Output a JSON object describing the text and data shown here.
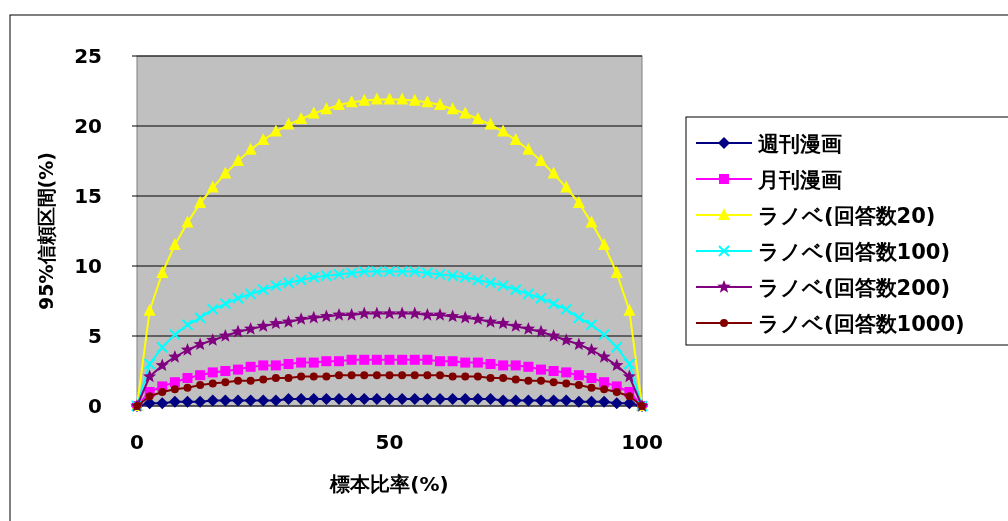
{
  "chart_data": {
    "type": "line",
    "xlabel": "標本比率(%)",
    "ylabel": "95%信頼区間(%)",
    "x": [
      0,
      2.5,
      5,
      7.5,
      10,
      12.5,
      15,
      17.5,
      20,
      22.5,
      25,
      27.5,
      30,
      32.5,
      35,
      37.5,
      40,
      42.5,
      45,
      47.5,
      50,
      52.5,
      55,
      57.5,
      60,
      62.5,
      65,
      67.5,
      70,
      72.5,
      75,
      77.5,
      80,
      82.5,
      85,
      87.5,
      90,
      92.5,
      95,
      97.5,
      100
    ],
    "xlim": [
      0,
      100
    ],
    "xticks": [
      0,
      50,
      100
    ],
    "ylim": [
      0,
      25
    ],
    "yticks": [
      0,
      5,
      10,
      15,
      20,
      25
    ],
    "grid": "y",
    "legend": "right",
    "series": [
      {
        "name": "週刊漫画",
        "color": "#000080",
        "marker": "diamond",
        "values": [
          0,
          0.2,
          0.2,
          0.3,
          0.3,
          0.3,
          0.4,
          0.4,
          0.4,
          0.4,
          0.4,
          0.4,
          0.5,
          0.5,
          0.5,
          0.5,
          0.5,
          0.5,
          0.5,
          0.5,
          0.5,
          0.5,
          0.5,
          0.5,
          0.5,
          0.5,
          0.5,
          0.5,
          0.5,
          0.4,
          0.4,
          0.4,
          0.4,
          0.4,
          0.4,
          0.3,
          0.3,
          0.3,
          0.2,
          0.2,
          0
        ]
      },
      {
        "name": "月刊漫画",
        "color": "#ff00ff",
        "marker": "square",
        "values": [
          0,
          1.0,
          1.4,
          1.7,
          2.0,
          2.2,
          2.4,
          2.5,
          2.6,
          2.8,
          2.9,
          2.9,
          3.0,
          3.1,
          3.1,
          3.2,
          3.2,
          3.3,
          3.3,
          3.3,
          3.3,
          3.3,
          3.3,
          3.3,
          3.2,
          3.2,
          3.1,
          3.1,
          3.0,
          2.9,
          2.9,
          2.8,
          2.6,
          2.5,
          2.4,
          2.2,
          2.0,
          1.7,
          1.4,
          1.0,
          0
        ]
      },
      {
        "name": "ラノベ(回答数20)",
        "color": "#ffff00",
        "marker": "triangle",
        "values": [
          0,
          6.8,
          9.5,
          11.5,
          13.1,
          14.5,
          15.6,
          16.6,
          17.5,
          18.3,
          19.0,
          19.6,
          20.1,
          20.5,
          20.9,
          21.2,
          21.5,
          21.7,
          21.8,
          21.9,
          21.9,
          21.9,
          21.8,
          21.7,
          21.5,
          21.2,
          20.9,
          20.5,
          20.1,
          19.6,
          19.0,
          18.3,
          17.5,
          16.6,
          15.6,
          14.5,
          13.1,
          11.5,
          9.5,
          6.8,
          0
        ]
      },
      {
        "name": "ラノベ(回答数100)",
        "color": "#00ffff",
        "marker": "cross",
        "values": [
          0,
          3.0,
          4.2,
          5.1,
          5.8,
          6.3,
          6.9,
          7.3,
          7.7,
          8.0,
          8.3,
          8.6,
          8.8,
          9.0,
          9.2,
          9.3,
          9.4,
          9.5,
          9.6,
          9.6,
          9.6,
          9.6,
          9.6,
          9.5,
          9.4,
          9.3,
          9.2,
          9.0,
          8.8,
          8.6,
          8.3,
          8.0,
          7.7,
          7.3,
          6.9,
          6.3,
          5.8,
          5.1,
          4.2,
          3.0,
          0
        ]
      },
      {
        "name": "ラノベ(回答数200)",
        "color": "#800080",
        "marker": "star",
        "values": [
          0,
          2.1,
          2.9,
          3.5,
          4.0,
          4.4,
          4.7,
          5.0,
          5.3,
          5.5,
          5.7,
          5.9,
          6.0,
          6.2,
          6.3,
          6.4,
          6.5,
          6.5,
          6.6,
          6.6,
          6.6,
          6.6,
          6.6,
          6.5,
          6.5,
          6.4,
          6.3,
          6.2,
          6.0,
          5.9,
          5.7,
          5.5,
          5.3,
          5.0,
          4.7,
          4.4,
          4.0,
          3.5,
          2.9,
          2.1,
          0
        ]
      },
      {
        "name": "ラノベ(回答数1000)",
        "color": "#800000",
        "marker": "circle",
        "values": [
          0,
          0.7,
          1.0,
          1.2,
          1.3,
          1.5,
          1.6,
          1.7,
          1.8,
          1.8,
          1.9,
          2.0,
          2.0,
          2.1,
          2.1,
          2.1,
          2.2,
          2.2,
          2.2,
          2.2,
          2.2,
          2.2,
          2.2,
          2.2,
          2.2,
          2.1,
          2.1,
          2.1,
          2.0,
          2.0,
          1.9,
          1.8,
          1.8,
          1.7,
          1.6,
          1.5,
          1.3,
          1.2,
          1.0,
          0.7,
          0
        ]
      }
    ]
  }
}
